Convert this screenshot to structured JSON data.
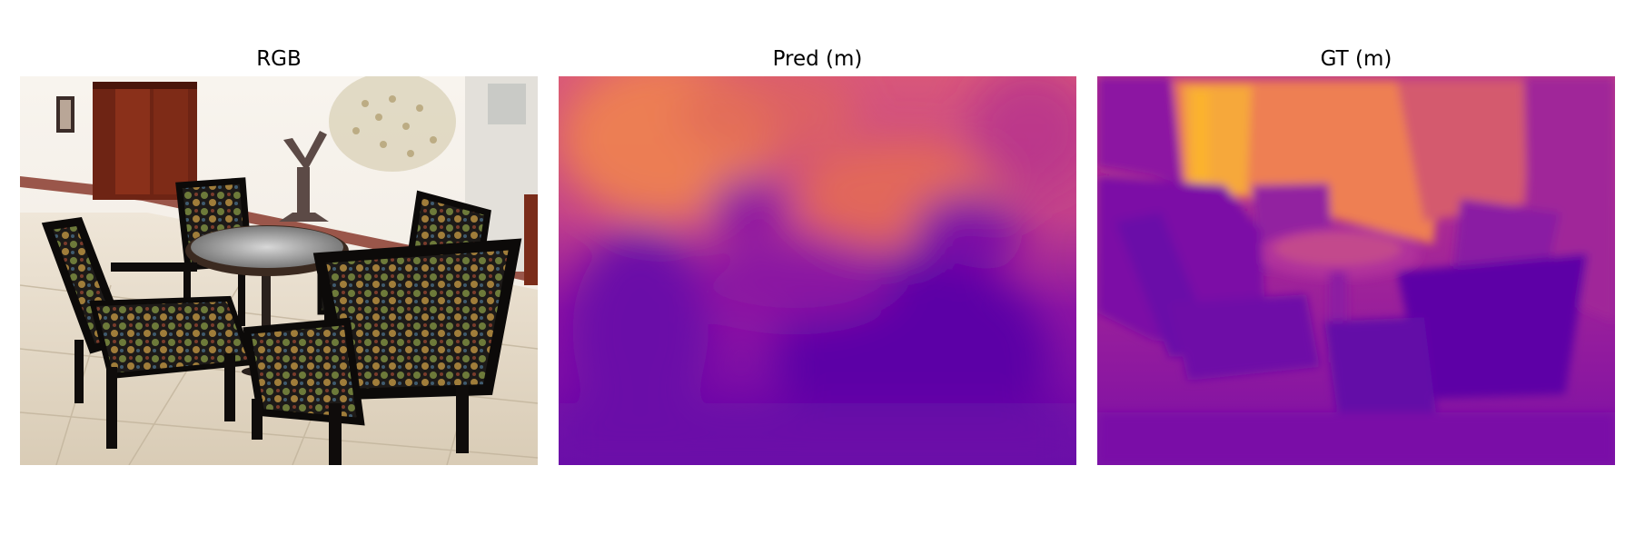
{
  "panels": [
    {
      "title": "RGB",
      "content": "photograph of four patterned armchairs around a round glass-top table in a tiled lobby"
    },
    {
      "title": "Pred (m)",
      "colormap": "plasma"
    },
    {
      "title": "GT (m)",
      "colormap": "plasma"
    }
  ],
  "colors": {
    "far": "#f58a4a",
    "mid": "#c9457f",
    "near": "#6a07a8",
    "nearest": "#4b03a1"
  }
}
